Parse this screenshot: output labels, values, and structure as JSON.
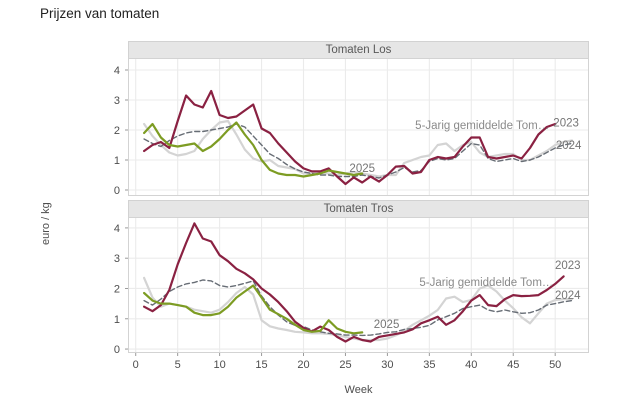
{
  "page": {
    "title": "Prijzen van tomaten"
  },
  "axes": {
    "x_label": "Week",
    "y_label": "euro / kg",
    "x_ticks": [
      0,
      5,
      10,
      15,
      20,
      25,
      30,
      35,
      40,
      45,
      50
    ],
    "y_ticks": [
      0,
      1,
      2,
      3,
      4
    ],
    "xlim": [
      -0.92,
      54.03
    ],
    "grid": true,
    "legend_position": "inline-labels"
  },
  "colors": {
    "line_2023": "#8a2142",
    "line_2024": "#d4d4d4",
    "line_2025": "#7d9c23",
    "line_avg": "#676d75",
    "grid": "#ebebeb",
    "panel_border": "#d3d3d3",
    "strip_bg": "#e6e6e6",
    "strip_text": "#595959",
    "tick_text": "#4d4d4d",
    "annotation_text": "#757575",
    "avg_label_text": "#8a8a8a"
  },
  "chart_data": [
    {
      "type": "line",
      "title": "Tomaten Los",
      "xlabel": "Week",
      "ylabel": "euro / kg",
      "ylim": [
        -0.2,
        4.4
      ],
      "series": [
        {
          "name": "2024",
          "color_key": "line_2024",
          "dash": false,
          "width": 2.2,
          "start_week": 1,
          "values": [
            2.2,
            1.8,
            1.5,
            1.25,
            1.15,
            1.2,
            1.3,
            1.7,
            2.0,
            2.25,
            2.3,
            1.85,
            1.35,
            1.05,
            0.95,
            1.0,
            0.8,
            0.75,
            0.7,
            0.55,
            0.55,
            0.6,
            0.55,
            0.5,
            0.55,
            0.6,
            0.55,
            0.5,
            0.45,
            0.5,
            0.5,
            0.9,
            1.0,
            1.1,
            1.15,
            1.5,
            1.55,
            1.3,
            1.5,
            1.6,
            1.25,
            1.1,
            1.15,
            1.2,
            1.2,
            1.0,
            1.0,
            1.15,
            1.3,
            1.5,
            1.6,
            1.65
          ]
        },
        {
          "name": "5-Jarig gemiddelde Tomaten",
          "color_key": "line_avg",
          "dash": true,
          "width": 1.4,
          "start_week": 1,
          "values": [
            1.7,
            1.55,
            1.45,
            1.65,
            1.8,
            1.9,
            1.95,
            1.95,
            2.0,
            2.05,
            2.1,
            2.2,
            2.1,
            1.8,
            1.5,
            1.2,
            1.05,
            0.85,
            0.7,
            0.6,
            0.55,
            0.5,
            0.5,
            0.45,
            0.45,
            0.45,
            0.5,
            0.45,
            0.4,
            0.5,
            0.6,
            0.75,
            0.6,
            0.65,
            0.95,
            1.05,
            1.0,
            1.05,
            1.3,
            1.55,
            1.5,
            1.05,
            0.95,
            1.0,
            1.05,
            0.95,
            1.0,
            1.1,
            1.25,
            1.4,
            1.5,
            1.55
          ]
        },
        {
          "name": "2023",
          "color_key": "line_2023",
          "dash": false,
          "width": 2.2,
          "start_week": 1,
          "values": [
            1.3,
            1.5,
            1.6,
            1.4,
            2.3,
            3.15,
            2.85,
            2.75,
            3.3,
            2.5,
            2.4,
            2.45,
            2.65,
            2.85,
            2.05,
            1.9,
            1.55,
            1.25,
            0.95,
            0.72,
            0.62,
            0.62,
            0.72,
            0.45,
            0.2,
            0.42,
            0.25,
            0.45,
            0.28,
            0.5,
            0.78,
            0.8,
            0.55,
            0.6,
            1.0,
            1.1,
            1.05,
            1.1,
            1.45,
            1.75,
            1.75,
            1.1,
            1.05,
            1.1,
            1.15,
            1.05,
            1.4,
            1.85,
            2.1,
            2.2
          ]
        },
        {
          "name": "2025",
          "color_key": "line_2025",
          "dash": false,
          "width": 2.2,
          "start_week": 1,
          "values": [
            1.9,
            2.2,
            1.75,
            1.5,
            1.45,
            1.5,
            1.55,
            1.3,
            1.45,
            1.7,
            2.0,
            2.25,
            1.85,
            1.5,
            1.0,
            0.67,
            0.55,
            0.5,
            0.5,
            0.45,
            0.5,
            0.55,
            0.65,
            0.6,
            0.55,
            0.5,
            0.55
          ]
        }
      ],
      "annotations": [
        {
          "text": "5-Jarig gemiddelde Tom…",
          "week": 41.3,
          "value": 2.17,
          "color_key": "avg_label_text"
        },
        {
          "text": "2023",
          "week": 51.3,
          "value": 2.25,
          "color_key": "annotation_text"
        },
        {
          "text": "2024",
          "week": 51.6,
          "value": 1.5,
          "color_key": "annotation_text"
        },
        {
          "text": "2025",
          "week": 27.0,
          "value": 0.73,
          "color_key": "annotation_text"
        }
      ]
    },
    {
      "type": "line",
      "title": "Tomaten Tros",
      "xlabel": "Week",
      "ylabel": "euro / kg",
      "ylim": [
        -0.13,
        4.36
      ],
      "series": [
        {
          "name": "2024",
          "color_key": "line_2024",
          "dash": false,
          "width": 2.2,
          "start_week": 1,
          "values": [
            2.35,
            1.7,
            1.4,
            1.5,
            1.45,
            1.4,
            1.3,
            1.25,
            1.2,
            1.3,
            1.55,
            1.85,
            2.05,
            1.8,
            0.95,
            0.75,
            0.68,
            0.63,
            0.57,
            0.55,
            0.52,
            0.52,
            0.5,
            0.46,
            0.4,
            0.35,
            0.3,
            0.3,
            0.3,
            0.35,
            0.45,
            0.6,
            0.8,
            0.95,
            1.1,
            1.29,
            1.67,
            1.73,
            1.55,
            1.62,
            2.0,
            2.1,
            1.9,
            1.6,
            1.35,
            1.05,
            0.85,
            1.18,
            1.5,
            1.62,
            1.65,
            1.65
          ]
        },
        {
          "name": "5-Jarig gemiddelde Tomaten",
          "color_key": "line_avg",
          "dash": true,
          "width": 1.4,
          "start_week": 1,
          "values": [
            1.6,
            1.45,
            1.65,
            1.9,
            2.05,
            2.15,
            2.2,
            2.28,
            2.25,
            2.1,
            2.05,
            2.1,
            2.17,
            2.25,
            1.75,
            1.4,
            1.12,
            0.9,
            0.78,
            0.74,
            0.63,
            0.57,
            0.52,
            0.5,
            0.46,
            0.46,
            0.45,
            0.46,
            0.5,
            0.55,
            0.57,
            0.65,
            0.68,
            0.72,
            0.78,
            0.96,
            1.07,
            1.18,
            1.34,
            1.4,
            1.45,
            1.29,
            1.23,
            1.29,
            1.23,
            1.18,
            1.2,
            1.29,
            1.45,
            1.5,
            1.56,
            1.6
          ]
        },
        {
          "name": "2023",
          "color_key": "line_2023",
          "dash": false,
          "width": 2.2,
          "start_week": 1,
          "values": [
            1.4,
            1.25,
            1.45,
            1.95,
            2.8,
            3.5,
            4.15,
            3.65,
            3.55,
            3.1,
            2.9,
            2.65,
            2.5,
            2.3,
            2.0,
            1.8,
            1.55,
            1.25,
            0.9,
            0.7,
            0.58,
            0.74,
            0.63,
            0.4,
            0.25,
            0.4,
            0.3,
            0.25,
            0.4,
            0.45,
            0.5,
            0.55,
            0.65,
            0.85,
            0.95,
            1.07,
            0.8,
            0.95,
            1.25,
            1.6,
            1.78,
            1.45,
            1.42,
            1.65,
            1.78,
            1.75,
            1.76,
            1.78,
            1.95,
            2.15,
            2.4
          ]
        },
        {
          "name": "2025",
          "color_key": "line_2025",
          "dash": false,
          "width": 2.2,
          "start_week": 1,
          "values": [
            1.85,
            1.6,
            1.5,
            1.5,
            1.45,
            1.4,
            1.2,
            1.12,
            1.12,
            1.18,
            1.4,
            1.7,
            1.9,
            2.1,
            1.7,
            1.3,
            1.15,
            1.0,
            0.8,
            0.63,
            0.57,
            0.6,
            0.95,
            0.68,
            0.57,
            0.52,
            0.55
          ]
        }
      ],
      "annotations": [
        {
          "text": "5-Jarig gemiddelde Tom…",
          "week": 41.8,
          "value": 2.21,
          "color_key": "avg_label_text"
        },
        {
          "text": "2023",
          "week": 51.5,
          "value": 2.77,
          "color_key": "annotation_text"
        },
        {
          "text": "2024",
          "week": 51.5,
          "value": 1.78,
          "color_key": "annotation_text"
        },
        {
          "text": "2025",
          "week": 29.9,
          "value": 0.82,
          "color_key": "annotation_text"
        }
      ]
    }
  ]
}
